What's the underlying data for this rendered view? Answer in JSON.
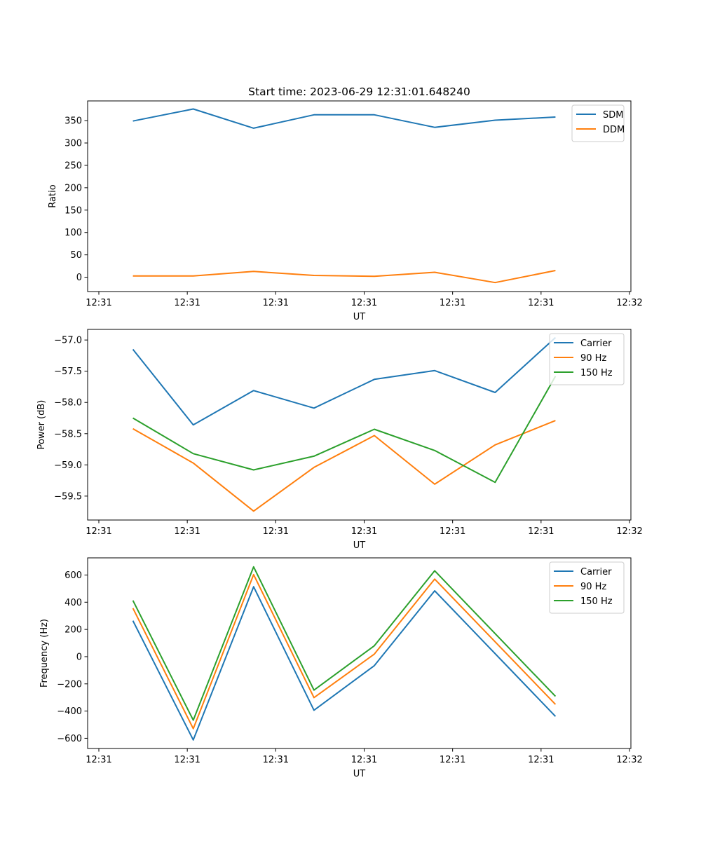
{
  "figure": {
    "title": "Start time: 2023-06-29 12:31:01.648240"
  },
  "chart_data": [
    {
      "type": "line",
      "title": "Start time: 2023-06-29 12:31:01.648240",
      "xlabel": "UT",
      "ylabel": "Ratio",
      "x_ticks": [
        "12:31",
        "12:31",
        "12:31",
        "12:31",
        "12:31",
        "12:31",
        "12:32"
      ],
      "xlim": [
        -0.5,
        8.5
      ],
      "ylim": [
        -32,
        394
      ],
      "yticks": [
        0,
        50,
        100,
        150,
        200,
        250,
        300,
        350
      ],
      "grid": false,
      "legend": "top-right",
      "x": [
        0.25,
        1.25,
        2.25,
        3.25,
        4.25,
        5.25,
        6.25,
        7.25
      ],
      "series": [
        {
          "name": "SDM",
          "color": "#1f77b4",
          "values": [
            349,
            376,
            333,
            363,
            363,
            335,
            351,
            358
          ]
        },
        {
          "name": "DDM",
          "color": "#ff7f0e",
          "values": [
            3,
            3,
            13,
            4,
            2,
            11,
            -12,
            15
          ]
        }
      ]
    },
    {
      "type": "line",
      "xlabel": "UT",
      "ylabel": "Power (dB)",
      "x_ticks": [
        "12:31",
        "12:31",
        "12:31",
        "12:31",
        "12:31",
        "12:31",
        "12:32"
      ],
      "xlim": [
        -0.5,
        8.5
      ],
      "ylim": [
        -59.883,
        -56.83
      ],
      "yticks": [
        -59.5,
        -59.0,
        -58.5,
        -58.0,
        -57.5,
        -57.0
      ],
      "grid": false,
      "legend": "top-right",
      "x": [
        0.25,
        1.25,
        2.25,
        3.25,
        4.25,
        5.25,
        6.25,
        7.25
      ],
      "series": [
        {
          "name": "Carrier",
          "color": "#1f77b4",
          "values": [
            -57.15,
            -58.36,
            -57.81,
            -58.09,
            -57.63,
            -57.49,
            -57.84,
            -56.96
          ]
        },
        {
          "name": "90 Hz",
          "color": "#ff7f0e",
          "values": [
            -58.42,
            -58.97,
            -59.74,
            -59.04,
            -58.53,
            -59.31,
            -58.68,
            -58.29
          ]
        },
        {
          "name": "150 Hz",
          "color": "#2ca02c",
          "values": [
            -58.25,
            -58.82,
            -59.08,
            -58.86,
            -58.43,
            -58.77,
            -59.28,
            -57.58
          ]
        }
      ]
    },
    {
      "type": "line",
      "xlabel": "UT",
      "ylabel": "Frequency (Hz)",
      "x_ticks": [
        "12:31",
        "12:31",
        "12:31",
        "12:31",
        "12:31",
        "12:31",
        "12:32"
      ],
      "xlim": [
        -0.5,
        8.5
      ],
      "ylim": [
        -675,
        726
      ],
      "yticks": [
        -600,
        -400,
        -200,
        0,
        200,
        400,
        600
      ],
      "grid": false,
      "legend": "top-right",
      "x": [
        0.25,
        1.25,
        2.25,
        3.25,
        4.25,
        5.25,
        7.25
      ],
      "series": [
        {
          "name": "Carrier",
          "color": "#1f77b4",
          "values": [
            264,
            -612,
            514,
            -394,
            -66,
            484,
            -439
          ]
        },
        {
          "name": "90 Hz",
          "color": "#ff7f0e",
          "values": [
            356,
            -529,
            603,
            -301,
            19,
            570,
            -351
          ]
        },
        {
          "name": "150 Hz",
          "color": "#2ca02c",
          "values": [
            413,
            -467,
            660,
            -246,
            80,
            631,
            -292
          ]
        }
      ]
    }
  ]
}
